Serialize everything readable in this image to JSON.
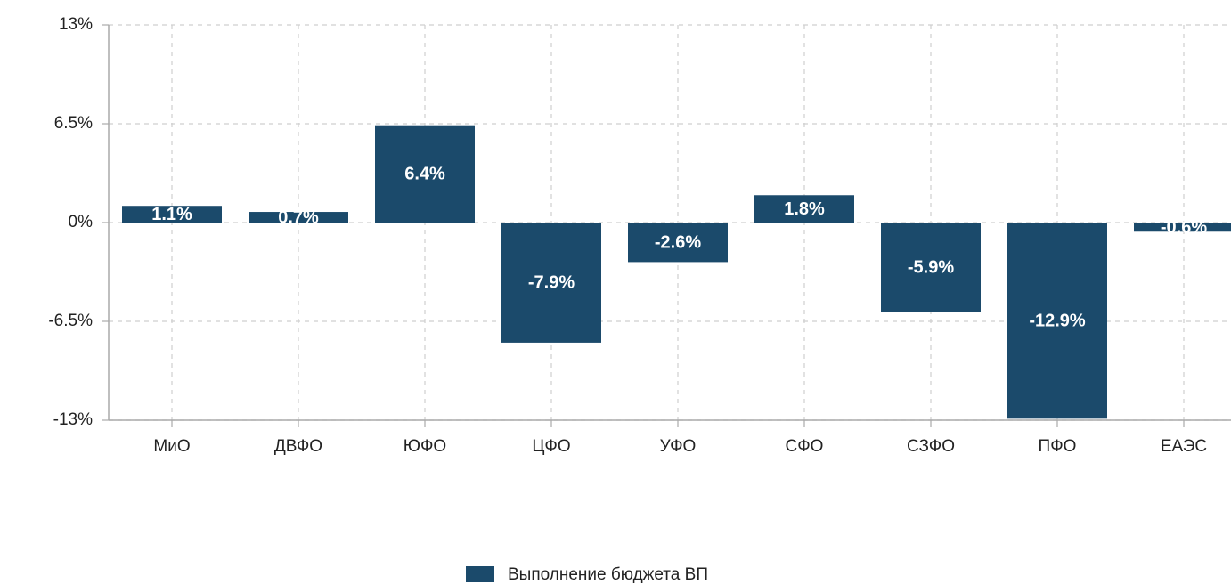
{
  "chart_data": {
    "type": "bar",
    "categories": [
      "МиО",
      "ДВФО",
      "ЮФО",
      "ЦФО",
      "УФО",
      "СФО",
      "СЗФО",
      "ПФО",
      "ЕАЭС"
    ],
    "series": [
      {
        "name": "Выполнение бюджета ВП",
        "color": "#1b4a6b",
        "values": [
          1.1,
          0.7,
          6.4,
          -7.9,
          -2.6,
          1.8,
          -5.9,
          -12.9,
          -0.6
        ],
        "value_labels": [
          "1.1%",
          "0.7%",
          "6.4%",
          "-7.9%",
          "-2.6%",
          "1.8%",
          "-5.9%",
          "-12.9%",
          "-0.6%"
        ]
      }
    ],
    "ylim": [
      -13,
      13
    ],
    "yticks": [
      {
        "value": -13,
        "label": "-13%"
      },
      {
        "value": -6.5,
        "label": "-6.5%"
      },
      {
        "value": 0,
        "label": "0%"
      },
      {
        "value": 6.5,
        "label": "6.5%"
      },
      {
        "value": 13,
        "label": "13%"
      }
    ],
    "grid": true,
    "legend": "bottom"
  }
}
